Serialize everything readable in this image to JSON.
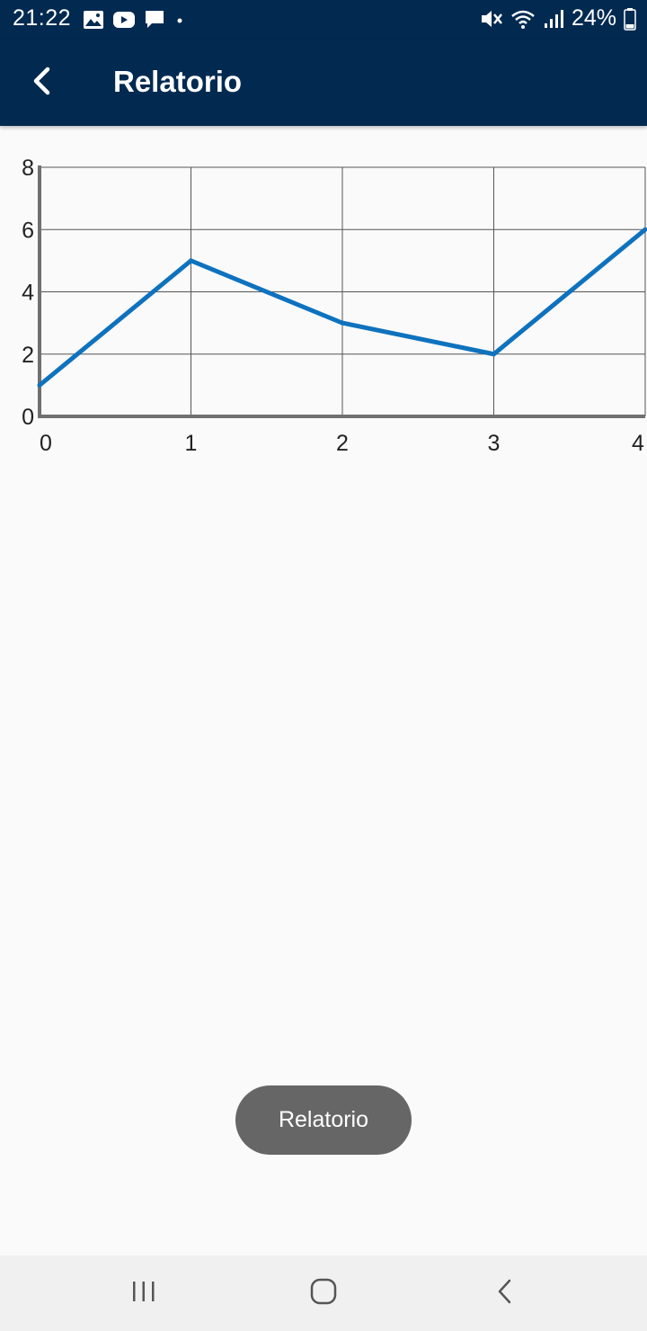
{
  "status_bar": {
    "time": "21:22",
    "battery_text": "24%",
    "icons_left": [
      "gallery-icon",
      "youtube-icon",
      "chat-icon",
      "dot-icon"
    ],
    "icons_right": [
      "mute-icon",
      "wifi-icon",
      "signal-icon",
      "battery-icon"
    ]
  },
  "app_bar": {
    "title": "Relatorio",
    "back_icon": "chevron-left-icon",
    "background": "#022a51"
  },
  "chart_data": {
    "type": "line",
    "x": [
      0,
      1,
      2,
      3,
      4
    ],
    "series": [
      {
        "values": [
          1,
          5,
          3,
          2,
          6
        ],
        "color": "#0e72be"
      }
    ],
    "x_ticks": [
      "0",
      "1",
      "2",
      "3",
      "4"
    ],
    "y_ticks": [
      "0",
      "2",
      "4",
      "6",
      "8"
    ],
    "xlim": [
      0,
      4
    ],
    "ylim": [
      0,
      8
    ],
    "grid": true,
    "title": "",
    "xlabel": "",
    "ylabel": ""
  },
  "toast": {
    "text": "Relatorio"
  },
  "nav_bar": {
    "items": [
      "recent-apps-icon",
      "home-icon",
      "back-icon"
    ]
  }
}
